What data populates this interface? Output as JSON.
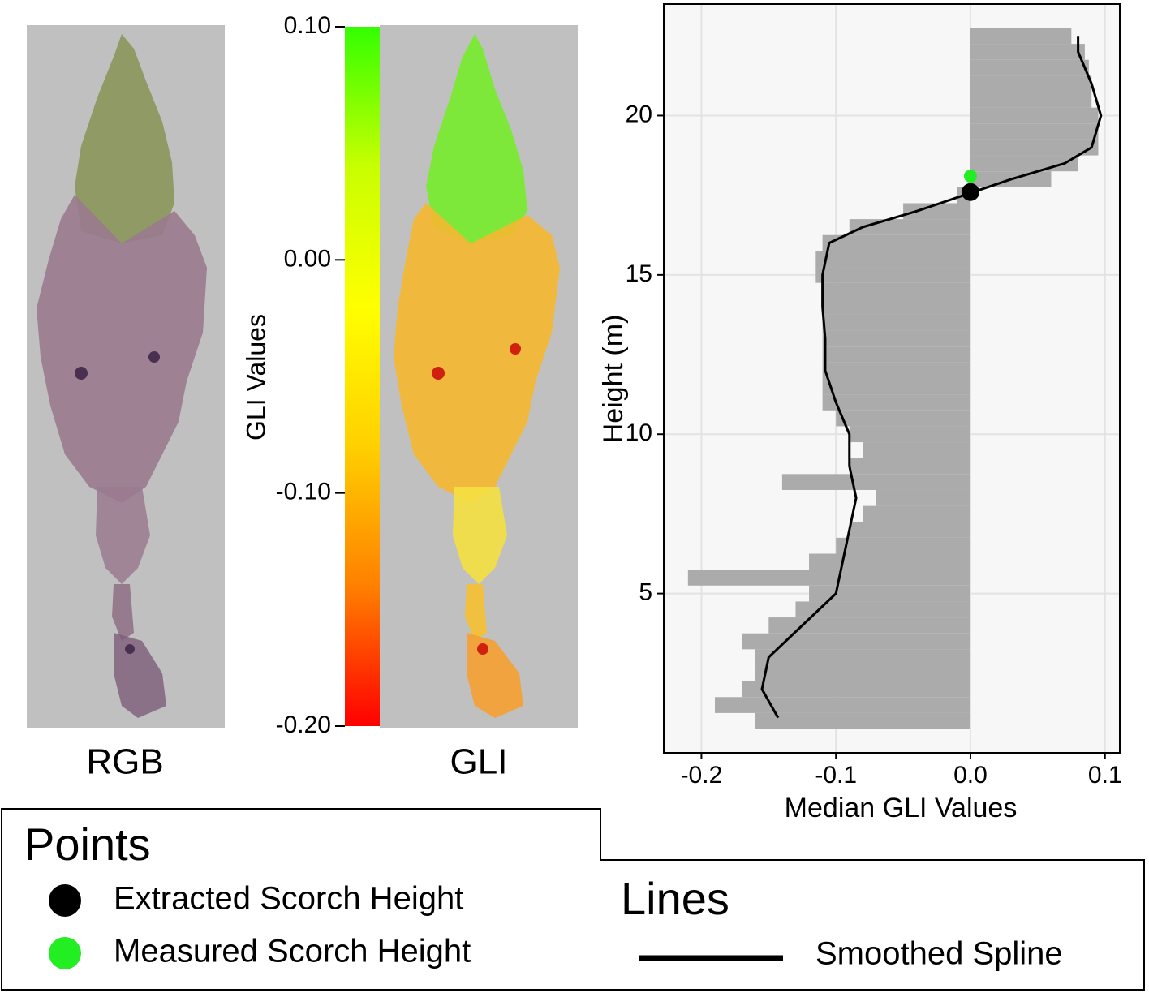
{
  "panels": {
    "rgb_label": "RGB",
    "gli_label": "GLI"
  },
  "colorbar": {
    "title": "GLI Values",
    "lim": [
      -0.2,
      0.1
    ],
    "ticks": [
      {
        "value": 0.1,
        "label": "0.10"
      },
      {
        "value": 0.0,
        "label": "0.00"
      },
      {
        "value": -0.1,
        "label": "-0.10"
      },
      {
        "value": -0.2,
        "label": "-0.20"
      }
    ],
    "colors": [
      "#ff0000",
      "#ff8000",
      "#ffd000",
      "#ffff00",
      "#c8ff00",
      "#33ff00"
    ]
  },
  "chart_data": {
    "type": "bar",
    "xlabel": "Median GLI Values",
    "ylabel": "Height (m)",
    "xlim": [
      -0.228,
      0.111
    ],
    "ylim": [
      0,
      23.5
    ],
    "xticks": [
      -0.2,
      -0.1,
      {
        "value": 0.0,
        "label": "0.0"
      },
      0.1
    ],
    "yticks": [
      5,
      10,
      15,
      20
    ],
    "grid": true,
    "color": "#ababab",
    "y": [
      1,
      1.5,
      2,
      2.5,
      3,
      3.5,
      4,
      4.5,
      5,
      5.5,
      6,
      6.5,
      7,
      7.5,
      8,
      8.5,
      9,
      9.5,
      10,
      10.5,
      11,
      11.5,
      12,
      12.5,
      13,
      13.5,
      14,
      14.5,
      15,
      15.5,
      16,
      16.5,
      17,
      17.5,
      18,
      18.5,
      19,
      19.5,
      20,
      20.5,
      21,
      21.5,
      22,
      22.5
    ],
    "values": [
      -0.16,
      -0.19,
      -0.17,
      -0.16,
      -0.16,
      -0.17,
      -0.15,
      -0.13,
      -0.12,
      -0.21,
      -0.12,
      -0.1,
      -0.09,
      -0.08,
      -0.07,
      -0.14,
      -0.09,
      -0.08,
      -0.09,
      -0.1,
      -0.11,
      -0.11,
      -0.11,
      -0.11,
      -0.11,
      -0.11,
      -0.11,
      -0.11,
      -0.115,
      -0.115,
      -0.11,
      -0.09,
      -0.05,
      -0.01,
      0.06,
      0.08,
      0.095,
      0.095,
      0.095,
      0.09,
      0.09,
      0.088,
      0.085,
      0.075
    ],
    "spline": {
      "name": "Smoothed Spline",
      "color": "#000000",
      "values": [
        -0.143,
        -0.155,
        -0.15,
        -0.125,
        -0.1,
        -0.095,
        -0.09,
        -0.085,
        -0.09,
        -0.09,
        -0.1,
        -0.108,
        -0.108,
        -0.11,
        -0.11,
        -0.105,
        -0.08,
        -0.04,
        -0.005,
        0.03,
        0.07,
        0.09,
        0.097,
        0.09,
        0.08,
        0.08
      ],
      "y": [
        1.1,
        2,
        3,
        4,
        5,
        6,
        7,
        8,
        9,
        10,
        11,
        12,
        13,
        14,
        15,
        16,
        16.5,
        17,
        17.5,
        18,
        18.5,
        19,
        20,
        21,
        22,
        22.5
      ]
    },
    "points": [
      {
        "name": "Extracted Scorch Height",
        "color": "#000000",
        "value": 0.0,
        "y": 17.6
      },
      {
        "name": "Measured Scorch Height",
        "color": "#22ee22",
        "value": 0.0,
        "y": 18.1
      }
    ]
  },
  "legend": {
    "points_title": "Points",
    "lines_title": "Lines"
  }
}
